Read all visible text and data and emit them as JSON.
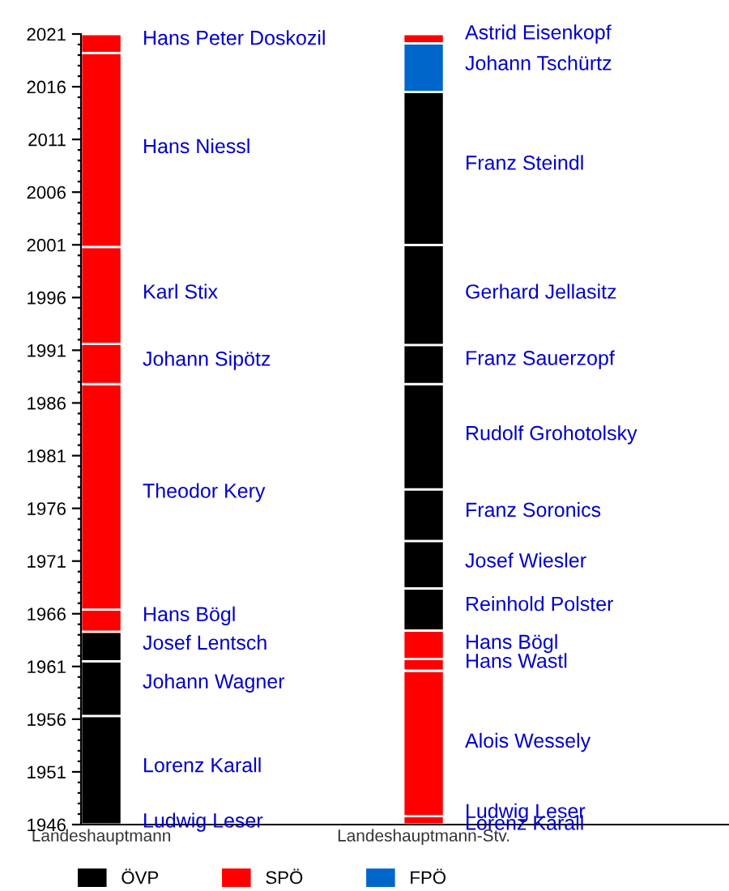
{
  "chart_data": {
    "type": "bar",
    "categories": [
      "Landeshauptmann",
      "Landeshauptmann-Stv."
    ],
    "series": [
      {
        "name": "ÖVP",
        "color": "#000000",
        "x": [
          "Landeshauptmann",
          "Landeshauptmann",
          "Landeshauptmann",
          "Landeshauptmann-Stv.",
          "Landeshauptmann-Stv.",
          "Landeshauptmann-Stv.",
          "Landeshauptmann-Stv.",
          "Landeshauptmann-Stv.",
          "Landeshauptmann-Stv.",
          "Landeshauptmann-Stv."
        ],
        "base": [
          1946,
          1956.3,
          1961.5,
          1964.4,
          1968.4,
          1972.9,
          1977.8,
          1987.8,
          1991.5,
          2001
        ],
        "values": [
          10.3,
          5.2,
          2.8,
          4.0,
          4.5,
          4.9,
          10.0,
          3.7,
          9.5,
          14.5
        ]
      },
      {
        "name": "SPÖ",
        "color": "#ff0000",
        "x": [
          "Landeshauptmann",
          "Landeshauptmann",
          "Landeshauptmann",
          "Landeshauptmann",
          "Landeshauptmann",
          "Landeshauptmann",
          "Landeshauptmann-Stv.",
          "Landeshauptmann-Stv.",
          "Landeshauptmann-Stv.",
          "Landeshauptmann-Stv.",
          "Landeshauptmann-Stv."
        ],
        "base": [
          1964.3,
          1966.4,
          1987.8,
          1991.6,
          2000.8,
          2019.2,
          1946,
          1946.8,
          1960.6,
          1961.7,
          2020.1
        ],
        "values": [
          2.1,
          21.4,
          3.8,
          9.2,
          18.4,
          1.8,
          0.8,
          13.8,
          1.1,
          2.7,
          0.9
        ]
      },
      {
        "name": "FPÖ",
        "color": "#0066cc",
        "x": [
          "Landeshauptmann-Stv."
        ],
        "base": [
          2015.5
        ],
        "values": [
          4.6
        ]
      }
    ],
    "ylim": [
      1946,
      2021
    ],
    "yticks": [
      1946,
      {
        "value": 1947,
        "label": null
      },
      {
        "value": 1948,
        "label": null
      },
      {
        "value": 1949,
        "label": null
      },
      {
        "value": 1950,
        "label": null
      },
      1951,
      {
        "value": 1952,
        "label": null
      },
      {
        "value": 1953,
        "label": null
      },
      {
        "value": 1954,
        "label": null
      },
      {
        "value": 1955,
        "label": null
      },
      1956,
      {
        "value": 1957,
        "label": null
      },
      {
        "value": 1958,
        "label": null
      },
      {
        "value": 1959,
        "label": null
      },
      {
        "value": 1960,
        "label": null
      },
      1961,
      {
        "value": 1962,
        "label": null
      },
      {
        "value": 1963,
        "label": null
      },
      {
        "value": 1964,
        "label": null
      },
      {
        "value": 1965,
        "label": null
      },
      1966,
      {
        "value": 1967,
        "label": null
      },
      {
        "value": 1968,
        "label": null
      },
      {
        "value": 1969,
        "label": null
      },
      {
        "value": 1970,
        "label": null
      },
      1971,
      {
        "value": 1972,
        "label": null
      },
      {
        "value": 1973,
        "label": null
      },
      {
        "value": 1974,
        "label": null
      },
      {
        "value": 1975,
        "label": null
      },
      1976,
      {
        "value": 1977,
        "label": null
      },
      {
        "value": 1978,
        "label": null
      },
      {
        "value": 1979,
        "label": null
      },
      {
        "value": 1980,
        "label": null
      },
      1981,
      {
        "value": 1982,
        "label": null
      },
      {
        "value": 1983,
        "label": null
      },
      {
        "value": 1984,
        "label": null
      },
      {
        "value": 1985,
        "label": null
      },
      1986,
      {
        "value": 1987,
        "label": null
      },
      {
        "value": 1988,
        "label": null
      },
      {
        "value": 1989,
        "label": null
      },
      {
        "value": 1990,
        "label": null
      },
      1991,
      {
        "value": 1992,
        "label": null
      },
      {
        "value": 1993,
        "label": null
      },
      {
        "value": 1994,
        "label": null
      },
      {
        "value": 1995,
        "label": null
      },
      1996,
      {
        "value": 1997,
        "label": null
      },
      {
        "value": 1998,
        "label": null
      },
      {
        "value": 1999,
        "label": null
      },
      {
        "value": 2000,
        "label": null
      },
      2001,
      {
        "value": 2002,
        "label": null
      },
      {
        "value": 2003,
        "label": null
      },
      {
        "value": 2004,
        "label": null
      },
      {
        "value": 2005,
        "label": null
      },
      2006,
      {
        "value": 2007,
        "label": null
      },
      {
        "value": 2008,
        "label": null
      },
      {
        "value": 2009,
        "label": null
      },
      {
        "value": 2010,
        "label": null
      },
      2011,
      {
        "value": 2012,
        "label": null
      },
      {
        "value": 2013,
        "label": null
      },
      {
        "value": 2014,
        "label": null
      },
      {
        "value": 2015,
        "label": null
      },
      2016,
      {
        "value": 2017,
        "label": null
      },
      {
        "value": 2018,
        "label": null
      },
      {
        "value": 2019,
        "label": null
      },
      {
        "value": 2020,
        "label": null
      },
      2021
    ],
    "grid": false,
    "legend": "bottom",
    "annotations": [
      "Hans Peter Doskozil",
      "Hans Niessl",
      "Karl Stix",
      "Johann Sipötz",
      "Theodor Kery",
      "Hans Bögl",
      "Josef Lentsch",
      "Johann Wagner",
      "Lorenz Karall",
      "Ludwig Leser",
      "Astrid Eisenkopf",
      "Johann Tschürtz",
      "Franz Steindl",
      "Gerhard Jellasitz",
      "Franz Sauerzopf",
      "Rudolf Grohotolsky",
      "Franz Soronics",
      "Josef Wiesler",
      "Reinhold Polster",
      "Hans Bögl",
      "Hans Wastl",
      "Alois Wessely",
      "Ludwig Leser",
      "Lorenz Karall"
    ]
  }
}
